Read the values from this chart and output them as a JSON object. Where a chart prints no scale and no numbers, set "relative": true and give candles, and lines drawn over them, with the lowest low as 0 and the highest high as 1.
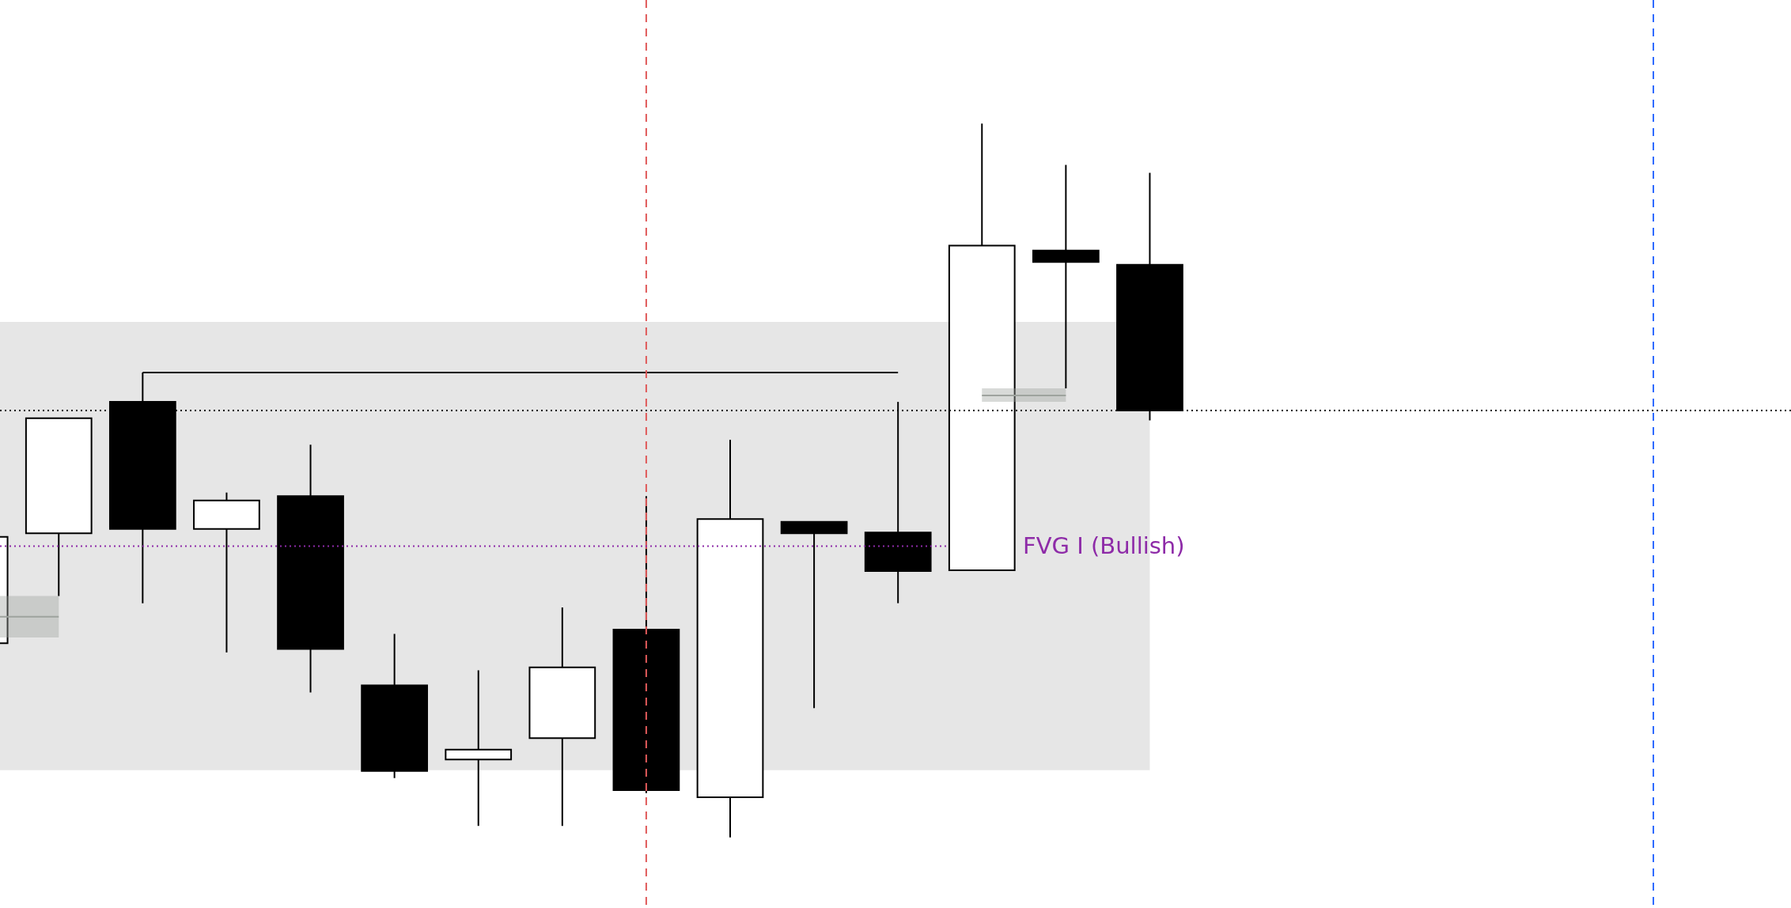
{
  "chart_data": {
    "type": "candlestick",
    "relative": true,
    "legend": false,
    "tick_labels": false,
    "colors": [
      "#ffffff",
      "#ffffff",
      "#000000",
      "#ffffff",
      "#000000",
      "#000000",
      "#ffffff",
      "#ffffff",
      "#000000",
      "#ffffff",
      "#000000",
      "#000000",
      "#ffffff",
      "#000000",
      "#000000",
      null,
      null,
      null,
      null,
      null,
      null,
      null
    ],
    "categories": [
      null,
      null,
      null,
      null,
      null,
      null,
      null,
      null,
      null,
      null,
      null,
      null,
      null,
      null,
      null,
      null,
      null,
      null,
      null,
      null,
      null,
      null
    ],
    "ohlc": [
      [
        0.272,
        0.421,
        0.272,
        0.421
      ],
      [
        0.426,
        0.587,
        0.338,
        0.587
      ],
      [
        0.61,
        0.651,
        0.328,
        0.432
      ],
      [
        0.432,
        0.483,
        0.259,
        0.472
      ],
      [
        0.478,
        0.55,
        0.203,
        0.264
      ],
      [
        0.213,
        0.285,
        0.083,
        0.093
      ],
      [
        0.109,
        0.234,
        0.016,
        0.123
      ],
      [
        0.139,
        0.322,
        0.016,
        0.238
      ],
      [
        0.291,
        0.478,
        0.062,
        0.066
      ],
      [
        0.056,
        0.557,
        0,
        0.446
      ],
      [
        0.442,
        0.442,
        0.181,
        0.426
      ],
      [
        0.427,
        0.61,
        0.328,
        0.373
      ],
      [
        0.374,
        1,
        0.374,
        0.829
      ],
      [
        0.822,
        0.942,
        0.629,
        0.806
      ],
      [
        0.802,
        0.931,
        0.584,
        0.598
      ],
      null,
      null,
      null,
      null,
      null,
      null,
      null
    ],
    "series": [
      {
        "type": "line",
        "color": "#000000",
        "values": [
          null,
          null,
          0.651,
          0.651,
          0.651,
          0.651,
          0.651,
          0.651,
          0.651,
          0.651,
          0.651,
          0.651,
          null,
          null,
          null,
          null,
          null,
          null,
          null,
          null,
          null,
          null
        ]
      },
      {
        "type": "line",
        "color": "#9ea39e",
        "values": [
          0.309,
          0.309,
          null,
          null,
          null,
          null,
          null,
          null,
          null,
          null,
          null,
          null,
          null,
          null,
          null,
          null,
          null,
          null,
          null,
          null,
          null,
          null
        ],
        "lower": [
          0.28,
          0.28,
          null,
          null,
          null,
          null,
          null,
          null,
          null,
          null,
          null,
          null,
          null,
          null,
          null,
          null,
          null,
          null,
          null,
          null,
          null,
          null
        ],
        "upper": [
          0.338,
          0.338,
          null,
          null,
          null,
          null,
          null,
          null,
          null,
          null,
          null,
          null,
          null,
          null,
          null,
          null,
          null,
          null,
          null,
          null,
          null,
          null
        ]
      },
      {
        "type": "line",
        "color": "#9ea39e",
        "values": [
          null,
          null,
          null,
          null,
          null,
          null,
          null,
          null,
          null,
          null,
          null,
          null,
          0.619,
          0.619,
          null,
          null,
          null,
          null,
          null,
          null,
          null,
          null
        ],
        "lower": [
          null,
          null,
          null,
          null,
          null,
          null,
          null,
          null,
          null,
          null,
          null,
          null,
          0.61,
          0.61,
          null,
          null,
          null,
          null,
          null,
          null,
          null,
          null
        ],
        "upper": [
          null,
          null,
          null,
          null,
          null,
          null,
          null,
          null,
          null,
          null,
          null,
          null,
          0.629,
          0.629,
          null,
          null,
          null,
          null,
          null,
          null,
          null,
          null
        ]
      }
    ],
    "bands": [
      {
        "axis": "y",
        "from": 0.094,
        "to": 0.722,
        "color": "#e6e6e6"
      }
    ],
    "ref_lines": [
      {
        "axis": "y",
        "value": 0.598,
        "color": "#000000",
        "line_style": "dotted"
      },
      {
        "axis": "y",
        "value": 0.408,
        "color": "#8e2ba8",
        "line_style": "dotted",
        "label": "FVG I (Bullish)"
      }
    ]
  }
}
